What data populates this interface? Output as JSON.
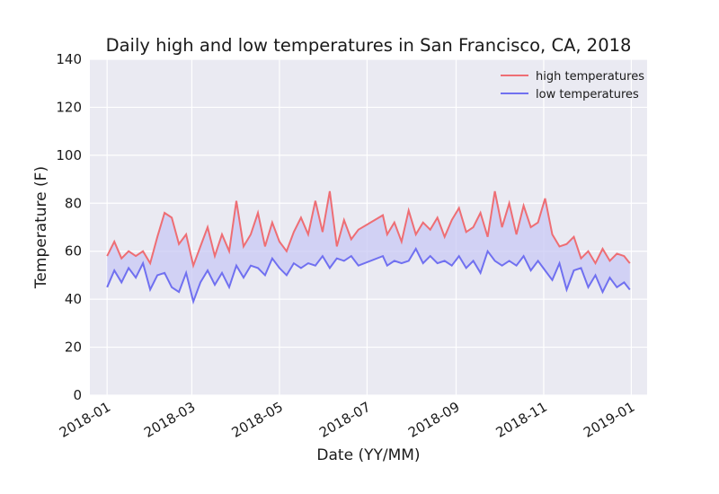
{
  "chart_data": {
    "type": "line",
    "title": "Daily high and low temperatures in San Francisco, CA, 2018",
    "xlabel": "Date (YY/MM)",
    "ylabel": "Temperature (F)",
    "ylim": [
      0,
      140
    ],
    "yticks": [
      0,
      20,
      40,
      60,
      80,
      100,
      120,
      140
    ],
    "xlim": [
      "2017-12-20",
      "2019-01-12"
    ],
    "xticks": [
      "2018-01",
      "2018-03",
      "2018-05",
      "2018-07",
      "2018-09",
      "2018-11",
      "2019-01"
    ],
    "grid": true,
    "legend_position": "top-right",
    "fill_between": true,
    "colors": {
      "high": "#ee6e74",
      "low": "#7070f0",
      "fill": "#c8c8f4",
      "background": "#eaeaf2"
    },
    "x": [
      "2018-01-01",
      "2018-01-06",
      "2018-01-11",
      "2018-01-16",
      "2018-01-21",
      "2018-01-26",
      "2018-01-31",
      "2018-02-05",
      "2018-02-10",
      "2018-02-15",
      "2018-02-20",
      "2018-02-25",
      "2018-03-02",
      "2018-03-07",
      "2018-03-12",
      "2018-03-17",
      "2018-03-22",
      "2018-03-27",
      "2018-04-01",
      "2018-04-06",
      "2018-04-11",
      "2018-04-16",
      "2018-04-21",
      "2018-04-26",
      "2018-05-01",
      "2018-05-06",
      "2018-05-11",
      "2018-05-16",
      "2018-05-21",
      "2018-05-26",
      "2018-05-31",
      "2018-06-05",
      "2018-06-10",
      "2018-06-15",
      "2018-06-20",
      "2018-06-25",
      "2018-07-12",
      "2018-07-15",
      "2018-07-20",
      "2018-07-25",
      "2018-07-30",
      "2018-08-04",
      "2018-08-09",
      "2018-08-14",
      "2018-08-19",
      "2018-08-24",
      "2018-08-29",
      "2018-09-03",
      "2018-09-08",
      "2018-09-13",
      "2018-09-18",
      "2018-09-23",
      "2018-09-28",
      "2018-10-03",
      "2018-10-08",
      "2018-10-13",
      "2018-10-18",
      "2018-10-23",
      "2018-10-28",
      "2018-11-02",
      "2018-11-07",
      "2018-11-12",
      "2018-11-17",
      "2018-11-22",
      "2018-11-27",
      "2018-12-02",
      "2018-12-07",
      "2018-12-12",
      "2018-12-17",
      "2018-12-22",
      "2018-12-27",
      "2018-12-31"
    ],
    "series": [
      {
        "name": "high temperatures",
        "values": [
          58,
          64,
          57,
          60,
          58,
          60,
          55,
          66,
          76,
          74,
          63,
          67,
          54,
          62,
          70,
          58,
          67,
          60,
          81,
          62,
          67,
          76,
          62,
          72,
          64,
          60,
          68,
          74,
          67,
          81,
          68,
          85,
          62,
          73,
          65,
          69,
          75,
          67,
          72,
          64,
          77,
          67,
          72,
          69,
          74,
          66,
          73,
          78,
          68,
          70,
          76,
          66,
          85,
          70,
          80,
          67,
          79,
          70,
          72,
          82,
          67,
          62,
          63,
          66,
          57,
          60,
          55,
          61,
          56,
          59,
          58,
          55
        ],
        "color": "#ee6e74"
      },
      {
        "name": "low temperatures",
        "values": [
          45,
          52,
          47,
          53,
          49,
          55,
          44,
          50,
          51,
          45,
          43,
          51,
          39,
          47,
          52,
          46,
          51,
          45,
          54,
          49,
          54,
          53,
          50,
          57,
          53,
          50,
          55,
          53,
          55,
          54,
          58,
          53,
          57,
          56,
          58,
          54,
          58,
          54,
          56,
          55,
          56,
          61,
          55,
          58,
          55,
          56,
          54,
          58,
          53,
          56,
          51,
          60,
          56,
          54,
          56,
          54,
          58,
          52,
          56,
          52,
          48,
          55,
          44,
          52,
          53,
          45,
          50,
          43,
          49,
          45,
          47,
          44
        ],
        "color": "#7070f0"
      }
    ]
  }
}
